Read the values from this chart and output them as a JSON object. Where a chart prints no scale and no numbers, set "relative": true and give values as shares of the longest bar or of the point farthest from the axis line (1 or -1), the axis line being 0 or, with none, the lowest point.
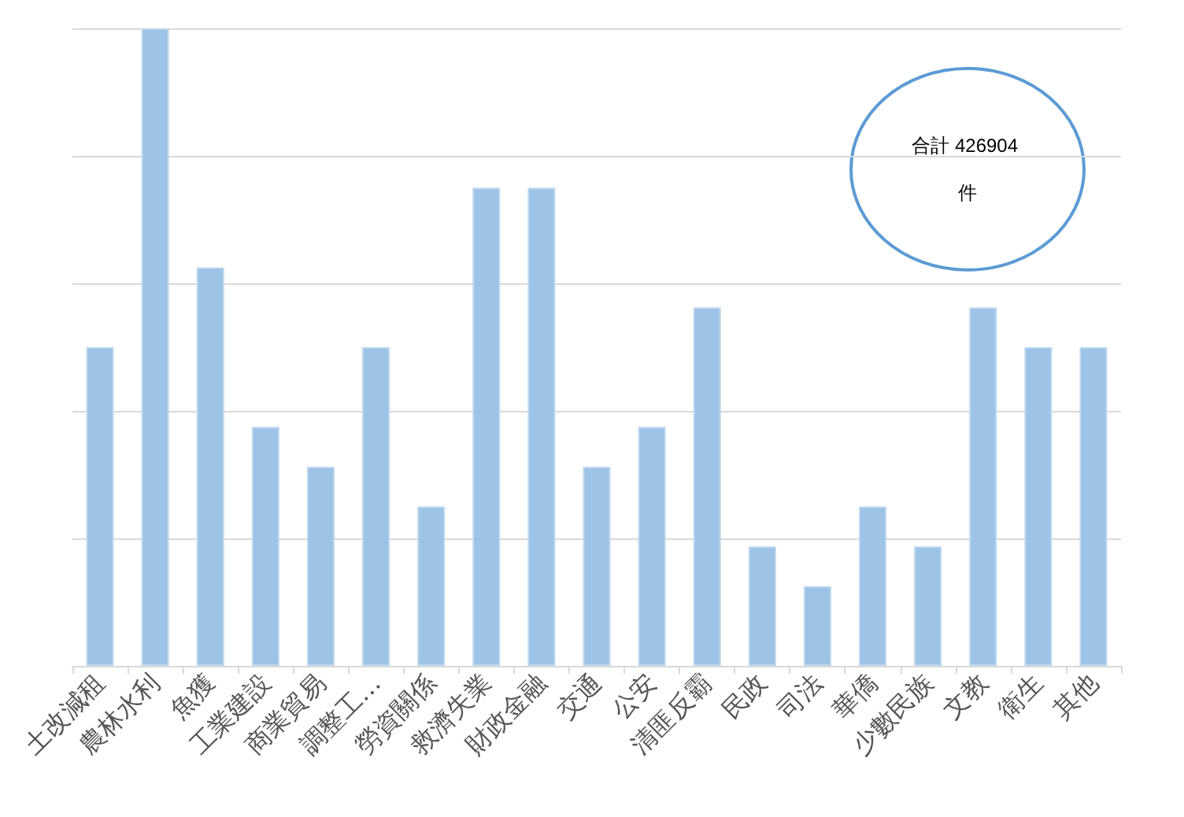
{
  "chart_data": {
    "type": "bar",
    "relative": true,
    "grid": "y",
    "categories": [
      "土改減租",
      "農林水利",
      "魚獲",
      "工業建設",
      "商業貿易",
      "調整工…",
      "勞資關係",
      "救濟失業",
      "財政金融",
      "交通",
      "公安",
      "清匪反霸",
      "民政",
      "司法",
      "華僑",
      "少數民族",
      "文教",
      "衛生",
      "其他"
    ],
    "values": [
      0.5,
      1,
      0.625,
      0.375,
      0.3125,
      0.5,
      0.25,
      0.75,
      0.75,
      0.3125,
      0.375,
      0.5625,
      0.1875,
      0.125,
      0.25,
      0.1875,
      0.5625,
      0.5,
      0.5
    ],
    "color": "#9dc3e6",
    "annotations": [
      "合計 426904 件"
    ]
  }
}
